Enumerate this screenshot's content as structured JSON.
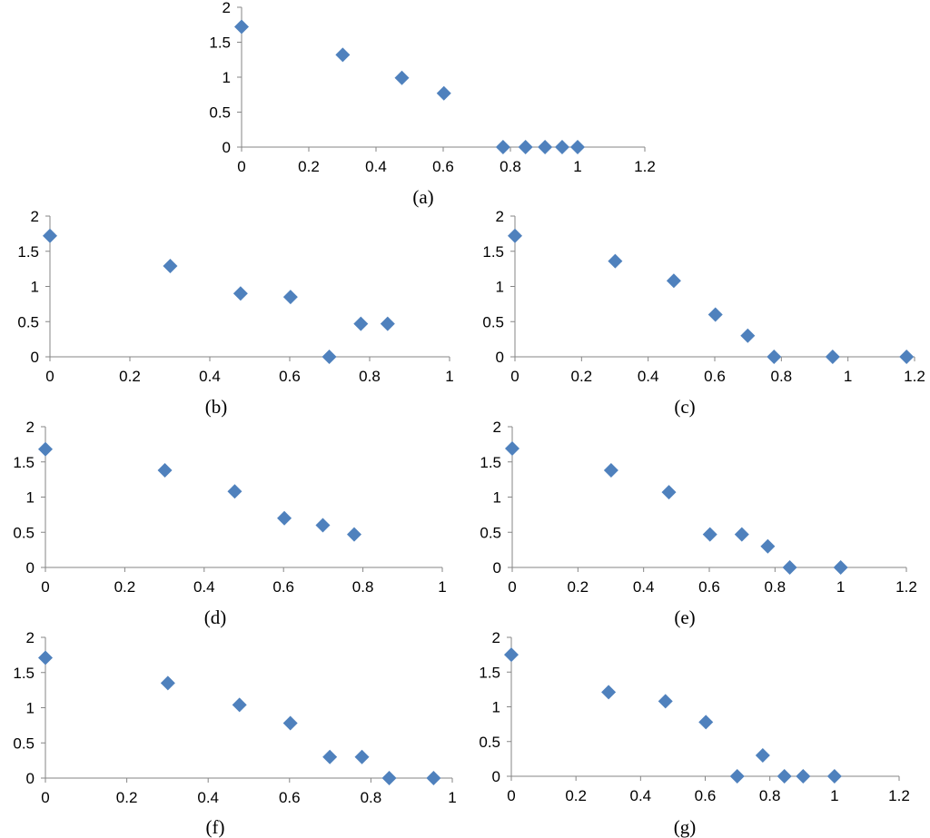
{
  "colors": {
    "marker": "#4F81BD",
    "axis": "#868686"
  },
  "chart_data": [
    {
      "type": "scatter",
      "caption": "(a)",
      "xlim": [
        0,
        1.2
      ],
      "ylim": [
        0,
        2
      ],
      "xticks": [
        "0",
        "0.2",
        "0.4",
        "0.6",
        "0.8",
        "1",
        "1.2"
      ],
      "xtick_values": [
        0,
        0.2,
        0.4,
        0.6,
        0.8,
        1,
        1.2
      ],
      "yticks": [
        "0",
        "0.5",
        "1",
        "1.5",
        "2"
      ],
      "ytick_values": [
        0,
        0.5,
        1,
        1.5,
        2
      ],
      "grid": false,
      "x": [
        0,
        0.301,
        0.477,
        0.602,
        0.778,
        0.845,
        0.903,
        0.954,
        1
      ],
      "y": [
        1.72,
        1.32,
        0.99,
        0.77,
        0,
        0,
        0,
        0,
        0
      ]
    },
    {
      "type": "scatter",
      "caption": "(b)",
      "xlim": [
        0,
        1
      ],
      "ylim": [
        0,
        2
      ],
      "xticks": [
        "0",
        "0.2",
        "0.4",
        "0.6",
        "0.8",
        "1"
      ],
      "xtick_values": [
        0,
        0.2,
        0.4,
        0.6,
        0.8,
        1
      ],
      "yticks": [
        "0",
        "0.5",
        "1",
        "1.5",
        "2"
      ],
      "ytick_values": [
        0,
        0.5,
        1,
        1.5,
        2
      ],
      "grid": false,
      "x": [
        0,
        0.301,
        0.477,
        0.602,
        0.699,
        0.778,
        0.845
      ],
      "y": [
        1.72,
        1.29,
        0.9,
        0.85,
        0,
        0.47,
        0.47
      ]
    },
    {
      "type": "scatter",
      "caption": "(c)",
      "xlim": [
        0,
        1.2
      ],
      "ylim": [
        0,
        2
      ],
      "xticks": [
        "0",
        "0.2",
        "0.4",
        "0.6",
        "0.8",
        "1",
        "1.2"
      ],
      "xtick_values": [
        0,
        0.2,
        0.4,
        0.6,
        0.8,
        1,
        1.2
      ],
      "yticks": [
        "0",
        "0.5",
        "1",
        "1.5",
        "2"
      ],
      "ytick_values": [
        0,
        0.5,
        1,
        1.5,
        2
      ],
      "grid": false,
      "x": [
        0,
        0.301,
        0.477,
        0.602,
        0.699,
        0.778,
        0.954,
        1.176
      ],
      "y": [
        1.72,
        1.36,
        1.08,
        0.6,
        0.3,
        0,
        0,
        0
      ]
    },
    {
      "type": "scatter",
      "caption": "(d)",
      "xlim": [
        0,
        1
      ],
      "ylim": [
        0,
        2
      ],
      "xticks": [
        "0",
        "0.2",
        "0.4",
        "0.6",
        "0.8",
        "1"
      ],
      "xtick_values": [
        0,
        0.2,
        0.4,
        0.6,
        0.8,
        1
      ],
      "yticks": [
        "0",
        "0.5",
        "1",
        "1.5",
        "2"
      ],
      "ytick_values": [
        0,
        0.5,
        1,
        1.5,
        2
      ],
      "grid": false,
      "x": [
        0,
        0.301,
        0.477,
        0.602,
        0.699,
        0.778
      ],
      "y": [
        1.68,
        1.38,
        1.08,
        0.7,
        0.6,
        0.47
      ]
    },
    {
      "type": "scatter",
      "caption": "(e)",
      "xlim": [
        0,
        1.2
      ],
      "ylim": [
        0,
        2
      ],
      "xticks": [
        "0",
        "0.2",
        "0.4",
        "0.6",
        "0.8",
        "1",
        "1.2"
      ],
      "xtick_values": [
        0,
        0.2,
        0.4,
        0.6,
        0.8,
        1,
        1.2
      ],
      "yticks": [
        "0",
        "0.5",
        "1",
        "1.5",
        "2"
      ],
      "ytick_values": [
        0,
        0.5,
        1,
        1.5,
        2
      ],
      "grid": false,
      "x": [
        0,
        0.301,
        0.477,
        0.602,
        0.699,
        0.778,
        0.845,
        1
      ],
      "y": [
        1.69,
        1.38,
        1.07,
        0.47,
        0.47,
        0.3,
        0,
        0
      ]
    },
    {
      "type": "scatter",
      "caption": "(f)",
      "xlim": [
        0,
        1
      ],
      "ylim": [
        0,
        2
      ],
      "xticks": [
        "0",
        "0.2",
        "0.4",
        "0.6",
        "0.8",
        "1"
      ],
      "xtick_values": [
        0,
        0.2,
        0.4,
        0.6,
        0.8,
        1
      ],
      "yticks": [
        "0",
        "0.5",
        "1",
        "1.5",
        "2"
      ],
      "ytick_values": [
        0,
        0.5,
        1,
        1.5,
        2
      ],
      "grid": false,
      "x": [
        0,
        0.301,
        0.477,
        0.602,
        0.699,
        0.778,
        0.845,
        0.954
      ],
      "y": [
        1.71,
        1.35,
        1.04,
        0.78,
        0.3,
        0.3,
        0,
        0
      ]
    },
    {
      "type": "scatter",
      "caption": "(g)",
      "xlim": [
        0,
        1.2
      ],
      "ylim": [
        0,
        2
      ],
      "xticks": [
        "0",
        "0.2",
        "0.4",
        "0.6",
        "0.8",
        "1",
        "1.2"
      ],
      "xtick_values": [
        0,
        0.2,
        0.4,
        0.6,
        0.8,
        1,
        1.2
      ],
      "yticks": [
        "0",
        "0.5",
        "1",
        "1.5",
        "2"
      ],
      "ytick_values": [
        0,
        0.5,
        1,
        1.5,
        2
      ],
      "grid": false,
      "x": [
        0,
        0.301,
        0.477,
        0.602,
        0.699,
        0.778,
        0.845,
        0.903,
        1
      ],
      "y": [
        1.75,
        1.21,
        1.08,
        0.78,
        0,
        0.3,
        0,
        0,
        0
      ]
    }
  ]
}
